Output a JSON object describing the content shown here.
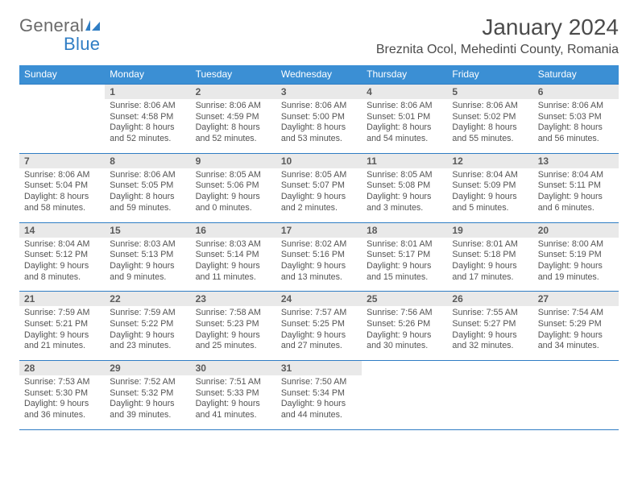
{
  "logo": {
    "word1": "General",
    "word2": "Blue"
  },
  "title": "January 2024",
  "location": "Breznita Ocol, Mehedinti County, Romania",
  "colors": {
    "header_bg": "#3b8fd4",
    "header_text": "#ffffff",
    "rule": "#2f7dc4",
    "daynum_bg": "#e9e9e9",
    "text": "#535353",
    "logo_gray": "#6a6a6a",
    "logo_blue": "#2f7dc4"
  },
  "day_headers": [
    "Sunday",
    "Monday",
    "Tuesday",
    "Wednesday",
    "Thursday",
    "Friday",
    "Saturday"
  ],
  "weeks": [
    [
      {
        "n": "",
        "sr": "",
        "ss": "",
        "dl": "",
        "dl2": ""
      },
      {
        "n": "1",
        "sr": "Sunrise: 8:06 AM",
        "ss": "Sunset: 4:58 PM",
        "dl": "Daylight: 8 hours",
        "dl2": "and 52 minutes."
      },
      {
        "n": "2",
        "sr": "Sunrise: 8:06 AM",
        "ss": "Sunset: 4:59 PM",
        "dl": "Daylight: 8 hours",
        "dl2": "and 52 minutes."
      },
      {
        "n": "3",
        "sr": "Sunrise: 8:06 AM",
        "ss": "Sunset: 5:00 PM",
        "dl": "Daylight: 8 hours",
        "dl2": "and 53 minutes."
      },
      {
        "n": "4",
        "sr": "Sunrise: 8:06 AM",
        "ss": "Sunset: 5:01 PM",
        "dl": "Daylight: 8 hours",
        "dl2": "and 54 minutes."
      },
      {
        "n": "5",
        "sr": "Sunrise: 8:06 AM",
        "ss": "Sunset: 5:02 PM",
        "dl": "Daylight: 8 hours",
        "dl2": "and 55 minutes."
      },
      {
        "n": "6",
        "sr": "Sunrise: 8:06 AM",
        "ss": "Sunset: 5:03 PM",
        "dl": "Daylight: 8 hours",
        "dl2": "and 56 minutes."
      }
    ],
    [
      {
        "n": "7",
        "sr": "Sunrise: 8:06 AM",
        "ss": "Sunset: 5:04 PM",
        "dl": "Daylight: 8 hours",
        "dl2": "and 58 minutes."
      },
      {
        "n": "8",
        "sr": "Sunrise: 8:06 AM",
        "ss": "Sunset: 5:05 PM",
        "dl": "Daylight: 8 hours",
        "dl2": "and 59 minutes."
      },
      {
        "n": "9",
        "sr": "Sunrise: 8:05 AM",
        "ss": "Sunset: 5:06 PM",
        "dl": "Daylight: 9 hours",
        "dl2": "and 0 minutes."
      },
      {
        "n": "10",
        "sr": "Sunrise: 8:05 AM",
        "ss": "Sunset: 5:07 PM",
        "dl": "Daylight: 9 hours",
        "dl2": "and 2 minutes."
      },
      {
        "n": "11",
        "sr": "Sunrise: 8:05 AM",
        "ss": "Sunset: 5:08 PM",
        "dl": "Daylight: 9 hours",
        "dl2": "and 3 minutes."
      },
      {
        "n": "12",
        "sr": "Sunrise: 8:04 AM",
        "ss": "Sunset: 5:09 PM",
        "dl": "Daylight: 9 hours",
        "dl2": "and 5 minutes."
      },
      {
        "n": "13",
        "sr": "Sunrise: 8:04 AM",
        "ss": "Sunset: 5:11 PM",
        "dl": "Daylight: 9 hours",
        "dl2": "and 6 minutes."
      }
    ],
    [
      {
        "n": "14",
        "sr": "Sunrise: 8:04 AM",
        "ss": "Sunset: 5:12 PM",
        "dl": "Daylight: 9 hours",
        "dl2": "and 8 minutes."
      },
      {
        "n": "15",
        "sr": "Sunrise: 8:03 AM",
        "ss": "Sunset: 5:13 PM",
        "dl": "Daylight: 9 hours",
        "dl2": "and 9 minutes."
      },
      {
        "n": "16",
        "sr": "Sunrise: 8:03 AM",
        "ss": "Sunset: 5:14 PM",
        "dl": "Daylight: 9 hours",
        "dl2": "and 11 minutes."
      },
      {
        "n": "17",
        "sr": "Sunrise: 8:02 AM",
        "ss": "Sunset: 5:16 PM",
        "dl": "Daylight: 9 hours",
        "dl2": "and 13 minutes."
      },
      {
        "n": "18",
        "sr": "Sunrise: 8:01 AM",
        "ss": "Sunset: 5:17 PM",
        "dl": "Daylight: 9 hours",
        "dl2": "and 15 minutes."
      },
      {
        "n": "19",
        "sr": "Sunrise: 8:01 AM",
        "ss": "Sunset: 5:18 PM",
        "dl": "Daylight: 9 hours",
        "dl2": "and 17 minutes."
      },
      {
        "n": "20",
        "sr": "Sunrise: 8:00 AM",
        "ss": "Sunset: 5:19 PM",
        "dl": "Daylight: 9 hours",
        "dl2": "and 19 minutes."
      }
    ],
    [
      {
        "n": "21",
        "sr": "Sunrise: 7:59 AM",
        "ss": "Sunset: 5:21 PM",
        "dl": "Daylight: 9 hours",
        "dl2": "and 21 minutes."
      },
      {
        "n": "22",
        "sr": "Sunrise: 7:59 AM",
        "ss": "Sunset: 5:22 PM",
        "dl": "Daylight: 9 hours",
        "dl2": "and 23 minutes."
      },
      {
        "n": "23",
        "sr": "Sunrise: 7:58 AM",
        "ss": "Sunset: 5:23 PM",
        "dl": "Daylight: 9 hours",
        "dl2": "and 25 minutes."
      },
      {
        "n": "24",
        "sr": "Sunrise: 7:57 AM",
        "ss": "Sunset: 5:25 PM",
        "dl": "Daylight: 9 hours",
        "dl2": "and 27 minutes."
      },
      {
        "n": "25",
        "sr": "Sunrise: 7:56 AM",
        "ss": "Sunset: 5:26 PM",
        "dl": "Daylight: 9 hours",
        "dl2": "and 30 minutes."
      },
      {
        "n": "26",
        "sr": "Sunrise: 7:55 AM",
        "ss": "Sunset: 5:27 PM",
        "dl": "Daylight: 9 hours",
        "dl2": "and 32 minutes."
      },
      {
        "n": "27",
        "sr": "Sunrise: 7:54 AM",
        "ss": "Sunset: 5:29 PM",
        "dl": "Daylight: 9 hours",
        "dl2": "and 34 minutes."
      }
    ],
    [
      {
        "n": "28",
        "sr": "Sunrise: 7:53 AM",
        "ss": "Sunset: 5:30 PM",
        "dl": "Daylight: 9 hours",
        "dl2": "and 36 minutes."
      },
      {
        "n": "29",
        "sr": "Sunrise: 7:52 AM",
        "ss": "Sunset: 5:32 PM",
        "dl": "Daylight: 9 hours",
        "dl2": "and 39 minutes."
      },
      {
        "n": "30",
        "sr": "Sunrise: 7:51 AM",
        "ss": "Sunset: 5:33 PM",
        "dl": "Daylight: 9 hours",
        "dl2": "and 41 minutes."
      },
      {
        "n": "31",
        "sr": "Sunrise: 7:50 AM",
        "ss": "Sunset: 5:34 PM",
        "dl": "Daylight: 9 hours",
        "dl2": "and 44 minutes."
      },
      {
        "n": "",
        "sr": "",
        "ss": "",
        "dl": "",
        "dl2": ""
      },
      {
        "n": "",
        "sr": "",
        "ss": "",
        "dl": "",
        "dl2": ""
      },
      {
        "n": "",
        "sr": "",
        "ss": "",
        "dl": "",
        "dl2": ""
      }
    ]
  ]
}
